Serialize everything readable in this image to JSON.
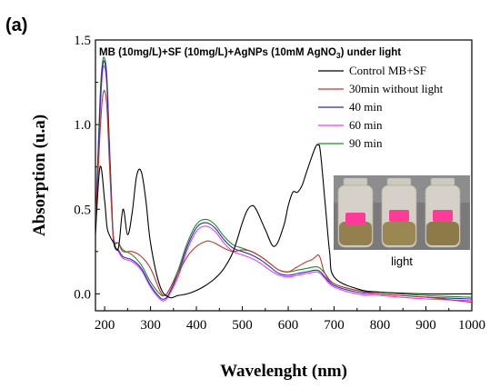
{
  "chart_data": {
    "type": "line",
    "panel_label": "(a)",
    "title_parts": {
      "main": "MB (10mg/L)+SF (10mg/L)+AgNPs (10mM AgNO",
      "sub": "3",
      "tail": ") under light"
    },
    "xlabel": "Wavelenght (nm)",
    "ylabel": "Absorption (u.a)",
    "xlim": [
      180,
      1000
    ],
    "ylim": [
      -0.1,
      1.5
    ],
    "xticks": [
      200,
      300,
      400,
      500,
      600,
      700,
      800,
      900,
      1000
    ],
    "yticks": [
      0.0,
      0.5,
      1.0,
      1.5
    ],
    "ytick_labels": [
      "0.0",
      "0.5",
      "1.0",
      "1.5"
    ],
    "legend_position": "top-right",
    "inset_caption": "light",
    "series": [
      {
        "name": "Control MB+SF",
        "color": "#000000",
        "x": [
          180,
          190,
          200,
          205,
          210,
          220,
          230,
          240,
          250,
          260,
          270,
          280,
          290,
          300,
          320,
          340,
          360,
          380,
          400,
          420,
          440,
          460,
          480,
          500,
          510,
          520,
          530,
          550,
          570,
          590,
          600,
          610,
          620,
          630,
          640,
          650,
          660,
          665,
          670,
          680,
          690,
          700,
          750,
          800,
          900,
          1000
        ],
        "y": [
          0.35,
          0.75,
          0.55,
          0.4,
          0.35,
          0.3,
          0.27,
          0.5,
          0.35,
          0.48,
          0.7,
          0.72,
          0.55,
          0.3,
          0.05,
          -0.02,
          -0.01,
          0.0,
          0.02,
          0.05,
          0.09,
          0.15,
          0.25,
          0.42,
          0.49,
          0.52,
          0.5,
          0.38,
          0.28,
          0.4,
          0.52,
          0.6,
          0.6,
          0.64,
          0.72,
          0.8,
          0.87,
          0.88,
          0.84,
          0.55,
          0.25,
          0.1,
          0.03,
          0.01,
          0.0,
          0.0
        ]
      },
      {
        "name": "30min without light",
        "color": "#c0392b",
        "x": [
          180,
          190,
          195,
          200,
          205,
          210,
          215,
          220,
          230,
          240,
          260,
          280,
          300,
          320,
          330,
          340,
          360,
          380,
          400,
          420,
          430,
          440,
          460,
          480,
          500,
          520,
          540,
          560,
          580,
          600,
          620,
          640,
          650,
          660,
          665,
          670,
          680,
          700,
          750,
          800,
          900,
          1000
        ],
        "y": [
          0.4,
          0.95,
          1.15,
          1.2,
          1.1,
          0.8,
          0.5,
          0.32,
          0.3,
          0.25,
          0.25,
          0.22,
          0.15,
          0.02,
          -0.01,
          0.02,
          0.12,
          0.22,
          0.28,
          0.31,
          0.31,
          0.3,
          0.27,
          0.25,
          0.26,
          0.25,
          0.22,
          0.18,
          0.14,
          0.13,
          0.16,
          0.19,
          0.2,
          0.22,
          0.23,
          0.21,
          0.12,
          0.06,
          0.02,
          0.0,
          -0.02,
          -0.05
        ]
      },
      {
        "name": "40 min",
        "color": "#2b2bb8",
        "x": [
          180,
          190,
          195,
          200,
          205,
          210,
          215,
          220,
          230,
          240,
          260,
          280,
          300,
          320,
          330,
          340,
          360,
          380,
          400,
          420,
          440,
          460,
          480,
          500,
          520,
          540,
          560,
          580,
          600,
          620,
          640,
          660,
          670,
          680,
          700,
          750,
          800,
          900,
          1000
        ],
        "y": [
          0.4,
          1.1,
          1.33,
          1.37,
          1.25,
          0.9,
          0.55,
          0.3,
          0.26,
          0.22,
          0.2,
          0.15,
          0.05,
          -0.02,
          -0.03,
          0.0,
          0.12,
          0.28,
          0.39,
          0.42,
          0.39,
          0.32,
          0.27,
          0.25,
          0.23,
          0.2,
          0.16,
          0.12,
          0.11,
          0.12,
          0.13,
          0.14,
          0.13,
          0.1,
          0.05,
          0.01,
          0.0,
          -0.02,
          -0.03
        ]
      },
      {
        "name": "60 min",
        "color": "#e040fb",
        "x": [
          180,
          190,
          195,
          200,
          205,
          210,
          215,
          220,
          230,
          240,
          260,
          280,
          300,
          320,
          330,
          340,
          360,
          380,
          400,
          420,
          440,
          460,
          480,
          500,
          520,
          540,
          560,
          580,
          600,
          620,
          640,
          660,
          670,
          680,
          700,
          750,
          800,
          900,
          1000
        ],
        "y": [
          0.4,
          1.05,
          1.3,
          1.34,
          1.22,
          0.88,
          0.53,
          0.3,
          0.25,
          0.21,
          0.19,
          0.14,
          0.04,
          -0.03,
          -0.04,
          -0.01,
          0.1,
          0.26,
          0.37,
          0.4,
          0.37,
          0.3,
          0.25,
          0.23,
          0.21,
          0.18,
          0.14,
          0.11,
          0.1,
          0.11,
          0.12,
          0.13,
          0.12,
          0.09,
          0.04,
          0.0,
          -0.01,
          -0.03,
          -0.04
        ]
      },
      {
        "name": "90 min",
        "color": "#1e8c1e",
        "x": [
          180,
          190,
          195,
          200,
          205,
          210,
          215,
          220,
          230,
          240,
          260,
          280,
          300,
          320,
          330,
          340,
          360,
          380,
          400,
          420,
          440,
          460,
          480,
          500,
          520,
          540,
          560,
          580,
          600,
          620,
          640,
          660,
          670,
          680,
          700,
          750,
          800,
          900,
          1000
        ],
        "y": [
          0.4,
          1.15,
          1.36,
          1.39,
          1.28,
          0.92,
          0.57,
          0.32,
          0.3,
          0.26,
          0.23,
          0.17,
          0.07,
          0.0,
          -0.01,
          0.02,
          0.14,
          0.3,
          0.41,
          0.44,
          0.41,
          0.34,
          0.29,
          0.27,
          0.25,
          0.22,
          0.18,
          0.14,
          0.13,
          0.14,
          0.15,
          0.16,
          0.15,
          0.12,
          0.06,
          0.02,
          0.01,
          -0.01,
          -0.02
        ]
      }
    ]
  },
  "colors": {
    "glass": "#d9d4cc",
    "liquid": "#9a8a5a",
    "label_pink": "#ff3b9a",
    "inset_bg": "#6e6e6e"
  }
}
